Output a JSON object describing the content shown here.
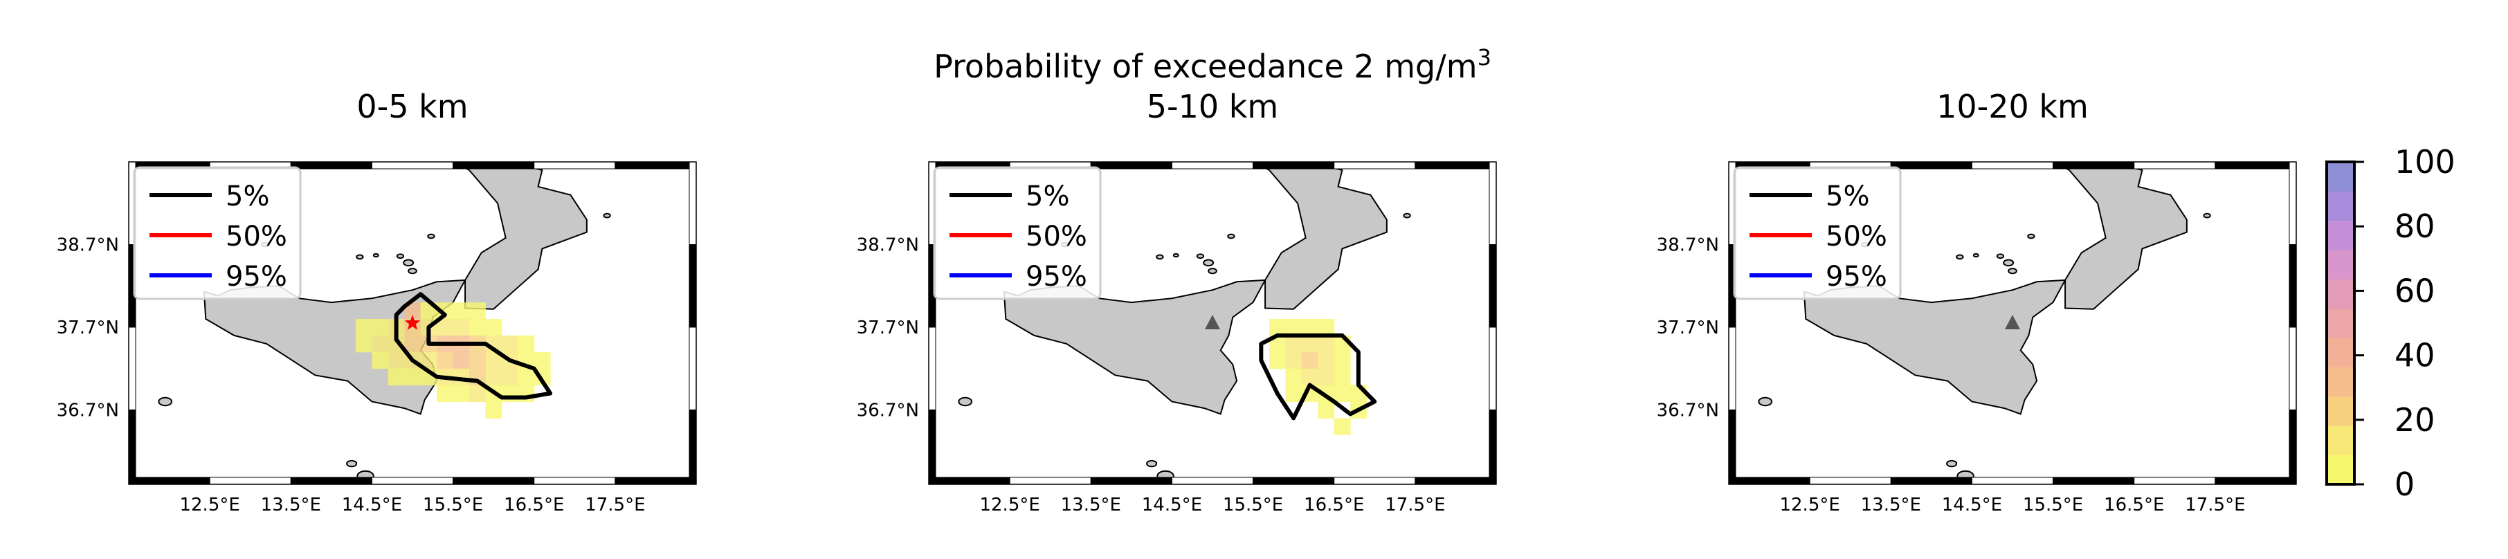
{
  "figure": {
    "title_line1": "Probability of exceedance 2 mg/m",
    "title_sup": "3"
  },
  "legend_entries": [
    {
      "label": "5%",
      "color": "#000000"
    },
    {
      "label": "50%",
      "color": "#ff0000"
    },
    {
      "label": "95%",
      "color": "#0000ff"
    }
  ],
  "colors": {
    "land": "#c8c8c8",
    "coast": "#000000",
    "vent_marker": "#555555",
    "background": "#ffffff"
  },
  "chart_data": [
    {
      "type": "heatmap",
      "title": "0-5 km",
      "xlabel": "",
      "ylabel": "",
      "xlim": [
        11.5,
        18.5
      ],
      "ylim": [
        35.8,
        39.7
      ],
      "xticks": [
        "12.5°E",
        "13.5°E",
        "14.5°E",
        "15.5°E",
        "16.5°E",
        "17.5°E"
      ],
      "xtick_values": [
        12.5,
        13.5,
        14.5,
        15.5,
        16.5,
        17.5
      ],
      "yticks": [
        "38.7°N",
        "37.7°N",
        "36.7°N"
      ],
      "ytick_values": [
        38.7,
        37.7,
        36.7
      ],
      "legend": "top-left",
      "vent": {
        "lon": 15.0,
        "lat": 37.75,
        "marker": "star",
        "color": "#ff0000"
      },
      "cells": [
        {
          "lon": 15.0,
          "lat": 37.9,
          "p": 30
        },
        {
          "lon": 15.2,
          "lat": 37.9,
          "p": 8
        },
        {
          "lon": 15.4,
          "lat": 37.9,
          "p": 6
        },
        {
          "lon": 15.6,
          "lat": 37.9,
          "p": 5
        },
        {
          "lon": 15.8,
          "lat": 37.9,
          "p": 5
        },
        {
          "lon": 14.4,
          "lat": 37.7,
          "p": 4
        },
        {
          "lon": 14.6,
          "lat": 37.7,
          "p": 8
        },
        {
          "lon": 14.8,
          "lat": 37.7,
          "p": 12
        },
        {
          "lon": 15.0,
          "lat": 37.7,
          "p": 26
        },
        {
          "lon": 15.2,
          "lat": 37.7,
          "p": 18
        },
        {
          "lon": 15.4,
          "lat": 37.7,
          "p": 14
        },
        {
          "lon": 15.6,
          "lat": 37.7,
          "p": 12
        },
        {
          "lon": 15.8,
          "lat": 37.7,
          "p": 8
        },
        {
          "lon": 16.0,
          "lat": 37.7,
          "p": 5
        },
        {
          "lon": 14.4,
          "lat": 37.5,
          "p": 5
        },
        {
          "lon": 14.6,
          "lat": 37.5,
          "p": 10
        },
        {
          "lon": 14.8,
          "lat": 37.5,
          "p": 14
        },
        {
          "lon": 15.0,
          "lat": 37.5,
          "p": 20
        },
        {
          "lon": 15.2,
          "lat": 37.5,
          "p": 24
        },
        {
          "lon": 15.4,
          "lat": 37.5,
          "p": 30
        },
        {
          "lon": 15.6,
          "lat": 37.5,
          "p": 30
        },
        {
          "lon": 15.8,
          "lat": 37.5,
          "p": 20
        },
        {
          "lon": 16.0,
          "lat": 37.5,
          "p": 14
        },
        {
          "lon": 16.2,
          "lat": 37.5,
          "p": 10
        },
        {
          "lon": 16.4,
          "lat": 37.5,
          "p": 6
        },
        {
          "lon": 14.6,
          "lat": 37.3,
          "p": 6
        },
        {
          "lon": 14.8,
          "lat": 37.3,
          "p": 10
        },
        {
          "lon": 15.0,
          "lat": 37.3,
          "p": 12
        },
        {
          "lon": 15.2,
          "lat": 37.3,
          "p": 16
        },
        {
          "lon": 15.4,
          "lat": 37.3,
          "p": 22
        },
        {
          "lon": 15.6,
          "lat": 37.3,
          "p": 28
        },
        {
          "lon": 15.8,
          "lat": 37.3,
          "p": 24
        },
        {
          "lon": 16.0,
          "lat": 37.3,
          "p": 18
        },
        {
          "lon": 16.2,
          "lat": 37.3,
          "p": 12
        },
        {
          "lon": 16.4,
          "lat": 37.3,
          "p": 8
        },
        {
          "lon": 16.6,
          "lat": 37.3,
          "p": 5
        },
        {
          "lon": 14.8,
          "lat": 37.1,
          "p": 5
        },
        {
          "lon": 15.0,
          "lat": 37.1,
          "p": 6
        },
        {
          "lon": 15.2,
          "lat": 37.1,
          "p": 8
        },
        {
          "lon": 15.4,
          "lat": 37.1,
          "p": 12
        },
        {
          "lon": 15.6,
          "lat": 37.1,
          "p": 16
        },
        {
          "lon": 15.8,
          "lat": 37.1,
          "p": 20
        },
        {
          "lon": 16.0,
          "lat": 37.1,
          "p": 16
        },
        {
          "lon": 16.2,
          "lat": 37.1,
          "p": 10
        },
        {
          "lon": 16.4,
          "lat": 37.1,
          "p": 8
        },
        {
          "lon": 16.6,
          "lat": 37.1,
          "p": 5
        },
        {
          "lon": 15.4,
          "lat": 36.9,
          "p": 5
        },
        {
          "lon": 15.6,
          "lat": 36.9,
          "p": 8
        },
        {
          "lon": 15.8,
          "lat": 36.9,
          "p": 10
        },
        {
          "lon": 16.0,
          "lat": 36.9,
          "p": 8
        },
        {
          "lon": 16.2,
          "lat": 36.9,
          "p": 6
        },
        {
          "lon": 16.4,
          "lat": 36.9,
          "p": 5
        },
        {
          "lon": 16.0,
          "lat": 36.7,
          "p": 4
        }
      ],
      "contour_5pct": [
        [
          14.9,
          37.95
        ],
        [
          15.1,
          38.1
        ],
        [
          15.4,
          37.85
        ],
        [
          15.2,
          37.7
        ],
        [
          15.2,
          37.5
        ],
        [
          15.9,
          37.5
        ],
        [
          16.2,
          37.3
        ],
        [
          16.5,
          37.2
        ],
        [
          16.7,
          36.9
        ],
        [
          16.4,
          36.85
        ],
        [
          16.1,
          36.85
        ],
        [
          15.8,
          37.05
        ],
        [
          15.3,
          37.1
        ],
        [
          15.0,
          37.3
        ],
        [
          14.8,
          37.55
        ],
        [
          14.8,
          37.85
        ]
      ]
    },
    {
      "type": "heatmap",
      "title": "5-10 km",
      "xlabel": "",
      "ylabel": "",
      "xlim": [
        11.5,
        18.5
      ],
      "ylim": [
        35.8,
        39.7
      ],
      "xticks": [
        "12.5°E",
        "13.5°E",
        "14.5°E",
        "15.5°E",
        "16.5°E",
        "17.5°E"
      ],
      "xtick_values": [
        12.5,
        13.5,
        14.5,
        15.5,
        16.5,
        17.5
      ],
      "yticks": [
        "38.7°N",
        "37.7°N",
        "36.7°N"
      ],
      "ytick_values": [
        38.7,
        37.7,
        36.7
      ],
      "legend": "top-left",
      "vent": {
        "lon": 15.0,
        "lat": 37.75,
        "marker": "triangle",
        "color": "#555555"
      },
      "cells": [
        {
          "lon": 15.8,
          "lat": 37.7,
          "p": 5
        },
        {
          "lon": 16.0,
          "lat": 37.7,
          "p": 6
        },
        {
          "lon": 16.2,
          "lat": 37.7,
          "p": 6
        },
        {
          "lon": 16.4,
          "lat": 37.7,
          "p": 5
        },
        {
          "lon": 15.8,
          "lat": 37.5,
          "p": 8
        },
        {
          "lon": 16.0,
          "lat": 37.5,
          "p": 10
        },
        {
          "lon": 16.2,
          "lat": 37.5,
          "p": 16
        },
        {
          "lon": 16.4,
          "lat": 37.5,
          "p": 10
        },
        {
          "lon": 16.6,
          "lat": 37.5,
          "p": 6
        },
        {
          "lon": 15.8,
          "lat": 37.3,
          "p": 6
        },
        {
          "lon": 16.0,
          "lat": 37.3,
          "p": 12
        },
        {
          "lon": 16.2,
          "lat": 37.3,
          "p": 22
        },
        {
          "lon": 16.4,
          "lat": 37.3,
          "p": 14
        },
        {
          "lon": 16.6,
          "lat": 37.3,
          "p": 8
        },
        {
          "lon": 16.0,
          "lat": 37.1,
          "p": 8
        },
        {
          "lon": 16.2,
          "lat": 37.1,
          "p": 14
        },
        {
          "lon": 16.4,
          "lat": 37.1,
          "p": 10
        },
        {
          "lon": 16.6,
          "lat": 37.1,
          "p": 6
        },
        {
          "lon": 16.0,
          "lat": 36.9,
          "p": 5
        },
        {
          "lon": 16.2,
          "lat": 36.9,
          "p": 8
        },
        {
          "lon": 16.4,
          "lat": 36.9,
          "p": 6
        },
        {
          "lon": 16.6,
          "lat": 36.9,
          "p": 5
        },
        {
          "lon": 16.8,
          "lat": 36.9,
          "p": 4
        },
        {
          "lon": 16.4,
          "lat": 36.7,
          "p": 4
        },
        {
          "lon": 16.8,
          "lat": 36.7,
          "p": 4
        },
        {
          "lon": 16.6,
          "lat": 36.5,
          "p": 4
        }
      ],
      "contour_5pct": [
        [
          15.6,
          37.5
        ],
        [
          15.8,
          37.6
        ],
        [
          16.3,
          37.6
        ],
        [
          16.6,
          37.6
        ],
        [
          16.8,
          37.4
        ],
        [
          16.8,
          37.0
        ],
        [
          17.0,
          36.8
        ],
        [
          16.7,
          36.65
        ],
        [
          16.5,
          36.8
        ],
        [
          16.2,
          37.0
        ],
        [
          16.0,
          36.6
        ],
        [
          15.8,
          36.9
        ],
        [
          15.6,
          37.3
        ]
      ]
    },
    {
      "type": "heatmap",
      "title": "10-20 km",
      "xlabel": "",
      "ylabel": "",
      "xlim": [
        11.5,
        18.5
      ],
      "ylim": [
        35.8,
        39.7
      ],
      "xticks": [
        "12.5°E",
        "13.5°E",
        "14.5°E",
        "15.5°E",
        "16.5°E",
        "17.5°E"
      ],
      "xtick_values": [
        12.5,
        13.5,
        14.5,
        15.5,
        16.5,
        17.5
      ],
      "yticks": [
        "38.7°N",
        "37.7°N",
        "36.7°N"
      ],
      "ytick_values": [
        38.7,
        37.7,
        36.7
      ],
      "legend": "top-left",
      "vent": {
        "lon": 15.0,
        "lat": 37.75,
        "marker": "triangle",
        "color": "#555555"
      },
      "cells": [],
      "contour_5pct": []
    }
  ],
  "colorbar": {
    "ticks": [
      "0",
      "20",
      "40",
      "60",
      "80",
      "100"
    ],
    "tick_values": [
      0,
      20,
      40,
      60,
      80,
      100
    ],
    "range": [
      0,
      100
    ],
    "colors": [
      "#f7f76e",
      "#f8e878",
      "#f8d080",
      "#f6bd8c",
      "#f2b096",
      "#eca6a8",
      "#e29cb8",
      "#d896cc",
      "#c48fd8",
      "#a88cdb",
      "#8f8fd6"
    ]
  }
}
